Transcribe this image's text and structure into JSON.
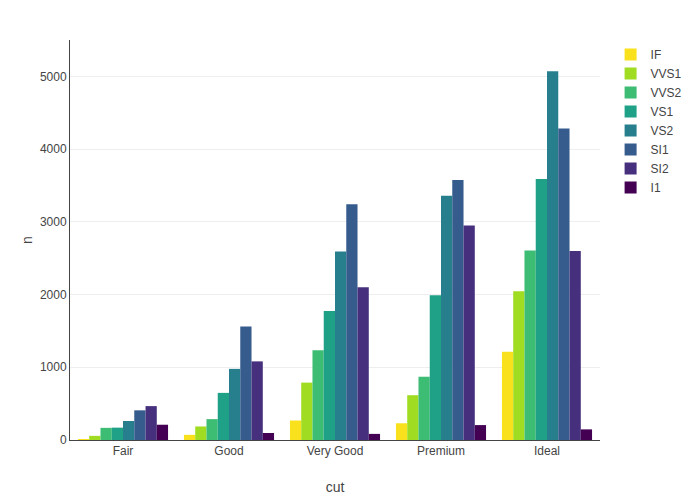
{
  "chart_data": {
    "type": "bar",
    "categories": [
      "Fair",
      "Good",
      "Very Good",
      "Premium",
      "Ideal"
    ],
    "series": [
      {
        "name": "IF",
        "color": "#f9e11e",
        "values": [
          8,
          71,
          268,
          230,
          1212
        ]
      },
      {
        "name": "VVS1",
        "color": "#a0dd22",
        "values": [
          57,
          186,
          789,
          616,
          2047
        ]
      },
      {
        "name": "VVS2",
        "color": "#3dbc74",
        "values": [
          167,
          287,
          1235,
          870,
          2606
        ]
      },
      {
        "name": "VS1",
        "color": "#1fa188",
        "values": [
          170,
          648,
          1775,
          1989,
          3589
        ]
      },
      {
        "name": "VS2",
        "color": "#277f8e",
        "values": [
          261,
          978,
          2591,
          3357,
          5071
        ]
      },
      {
        "name": "SI1",
        "color": "#365c8d",
        "values": [
          408,
          1560,
          3240,
          3575,
          4282
        ]
      },
      {
        "name": "SI2",
        "color": "#46307e",
        "values": [
          466,
          1081,
          2100,
          2949,
          2598
        ]
      },
      {
        "name": "I1",
        "color": "#440154",
        "values": [
          210,
          96,
          84,
          205,
          146
        ]
      }
    ],
    "xlabel": "cut",
    "ylabel": "n",
    "ylim": [
      0,
      5500
    ],
    "yticks": [
      0,
      1000,
      2000,
      3000,
      4000,
      5000
    ],
    "grid": true,
    "legend": "right"
  }
}
